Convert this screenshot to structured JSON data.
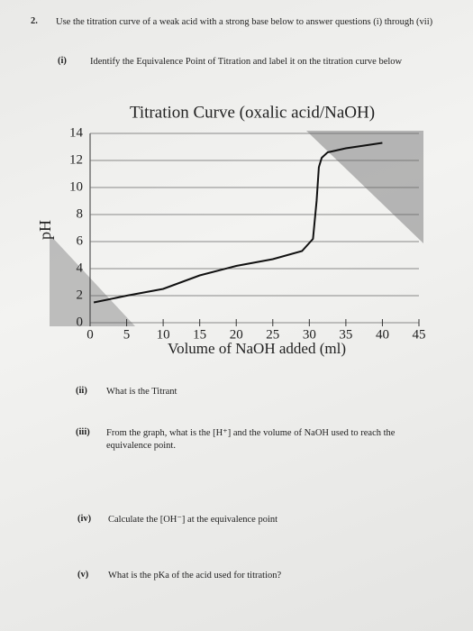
{
  "question": {
    "number": "2.",
    "text": "Use the titration curve of a weak acid with a strong base below to answer questions (i) through (vii)"
  },
  "items": [
    {
      "label": "(i)",
      "text": "Identify the Equivalence Point of Titration and label it on the titration curve below"
    },
    {
      "label": "(ii)",
      "text": "What is the Titrant"
    },
    {
      "label": "(iii)",
      "text": "From the graph, what is the [H⁺] and the volume of NaOH used to reach the equivalence point."
    },
    {
      "label": "(iv)",
      "text": "Calculate the [OH⁻] at the equivalence point"
    },
    {
      "label": "(v)",
      "text": "What is the pKa of the acid used for titration?"
    }
  ],
  "chart_data": {
    "type": "line",
    "title": "Titration Curve (oxalic acid/NaOH)",
    "x_label": "Volume of NaOH added (ml)",
    "y_label": "pH",
    "x": [
      0.5,
      5,
      10,
      15,
      20,
      25,
      29,
      30.5,
      31,
      31.3,
      31.7,
      32.5,
      35,
      40
    ],
    "values": [
      1.5,
      2,
      2.5,
      3.5,
      4.2,
      4.7,
      5.3,
      6.2,
      9,
      11.5,
      12.2,
      12.6,
      12.9,
      13.3
    ],
    "color": "#111111",
    "xlim": [
      0,
      45
    ],
    "xticks": [
      0,
      5,
      10,
      15,
      20,
      25,
      30,
      35,
      40,
      45
    ],
    "ylim": [
      0,
      14
    ],
    "yticks": [
      0,
      2,
      4,
      6,
      8,
      10,
      12,
      14
    ],
    "grid": true
  }
}
